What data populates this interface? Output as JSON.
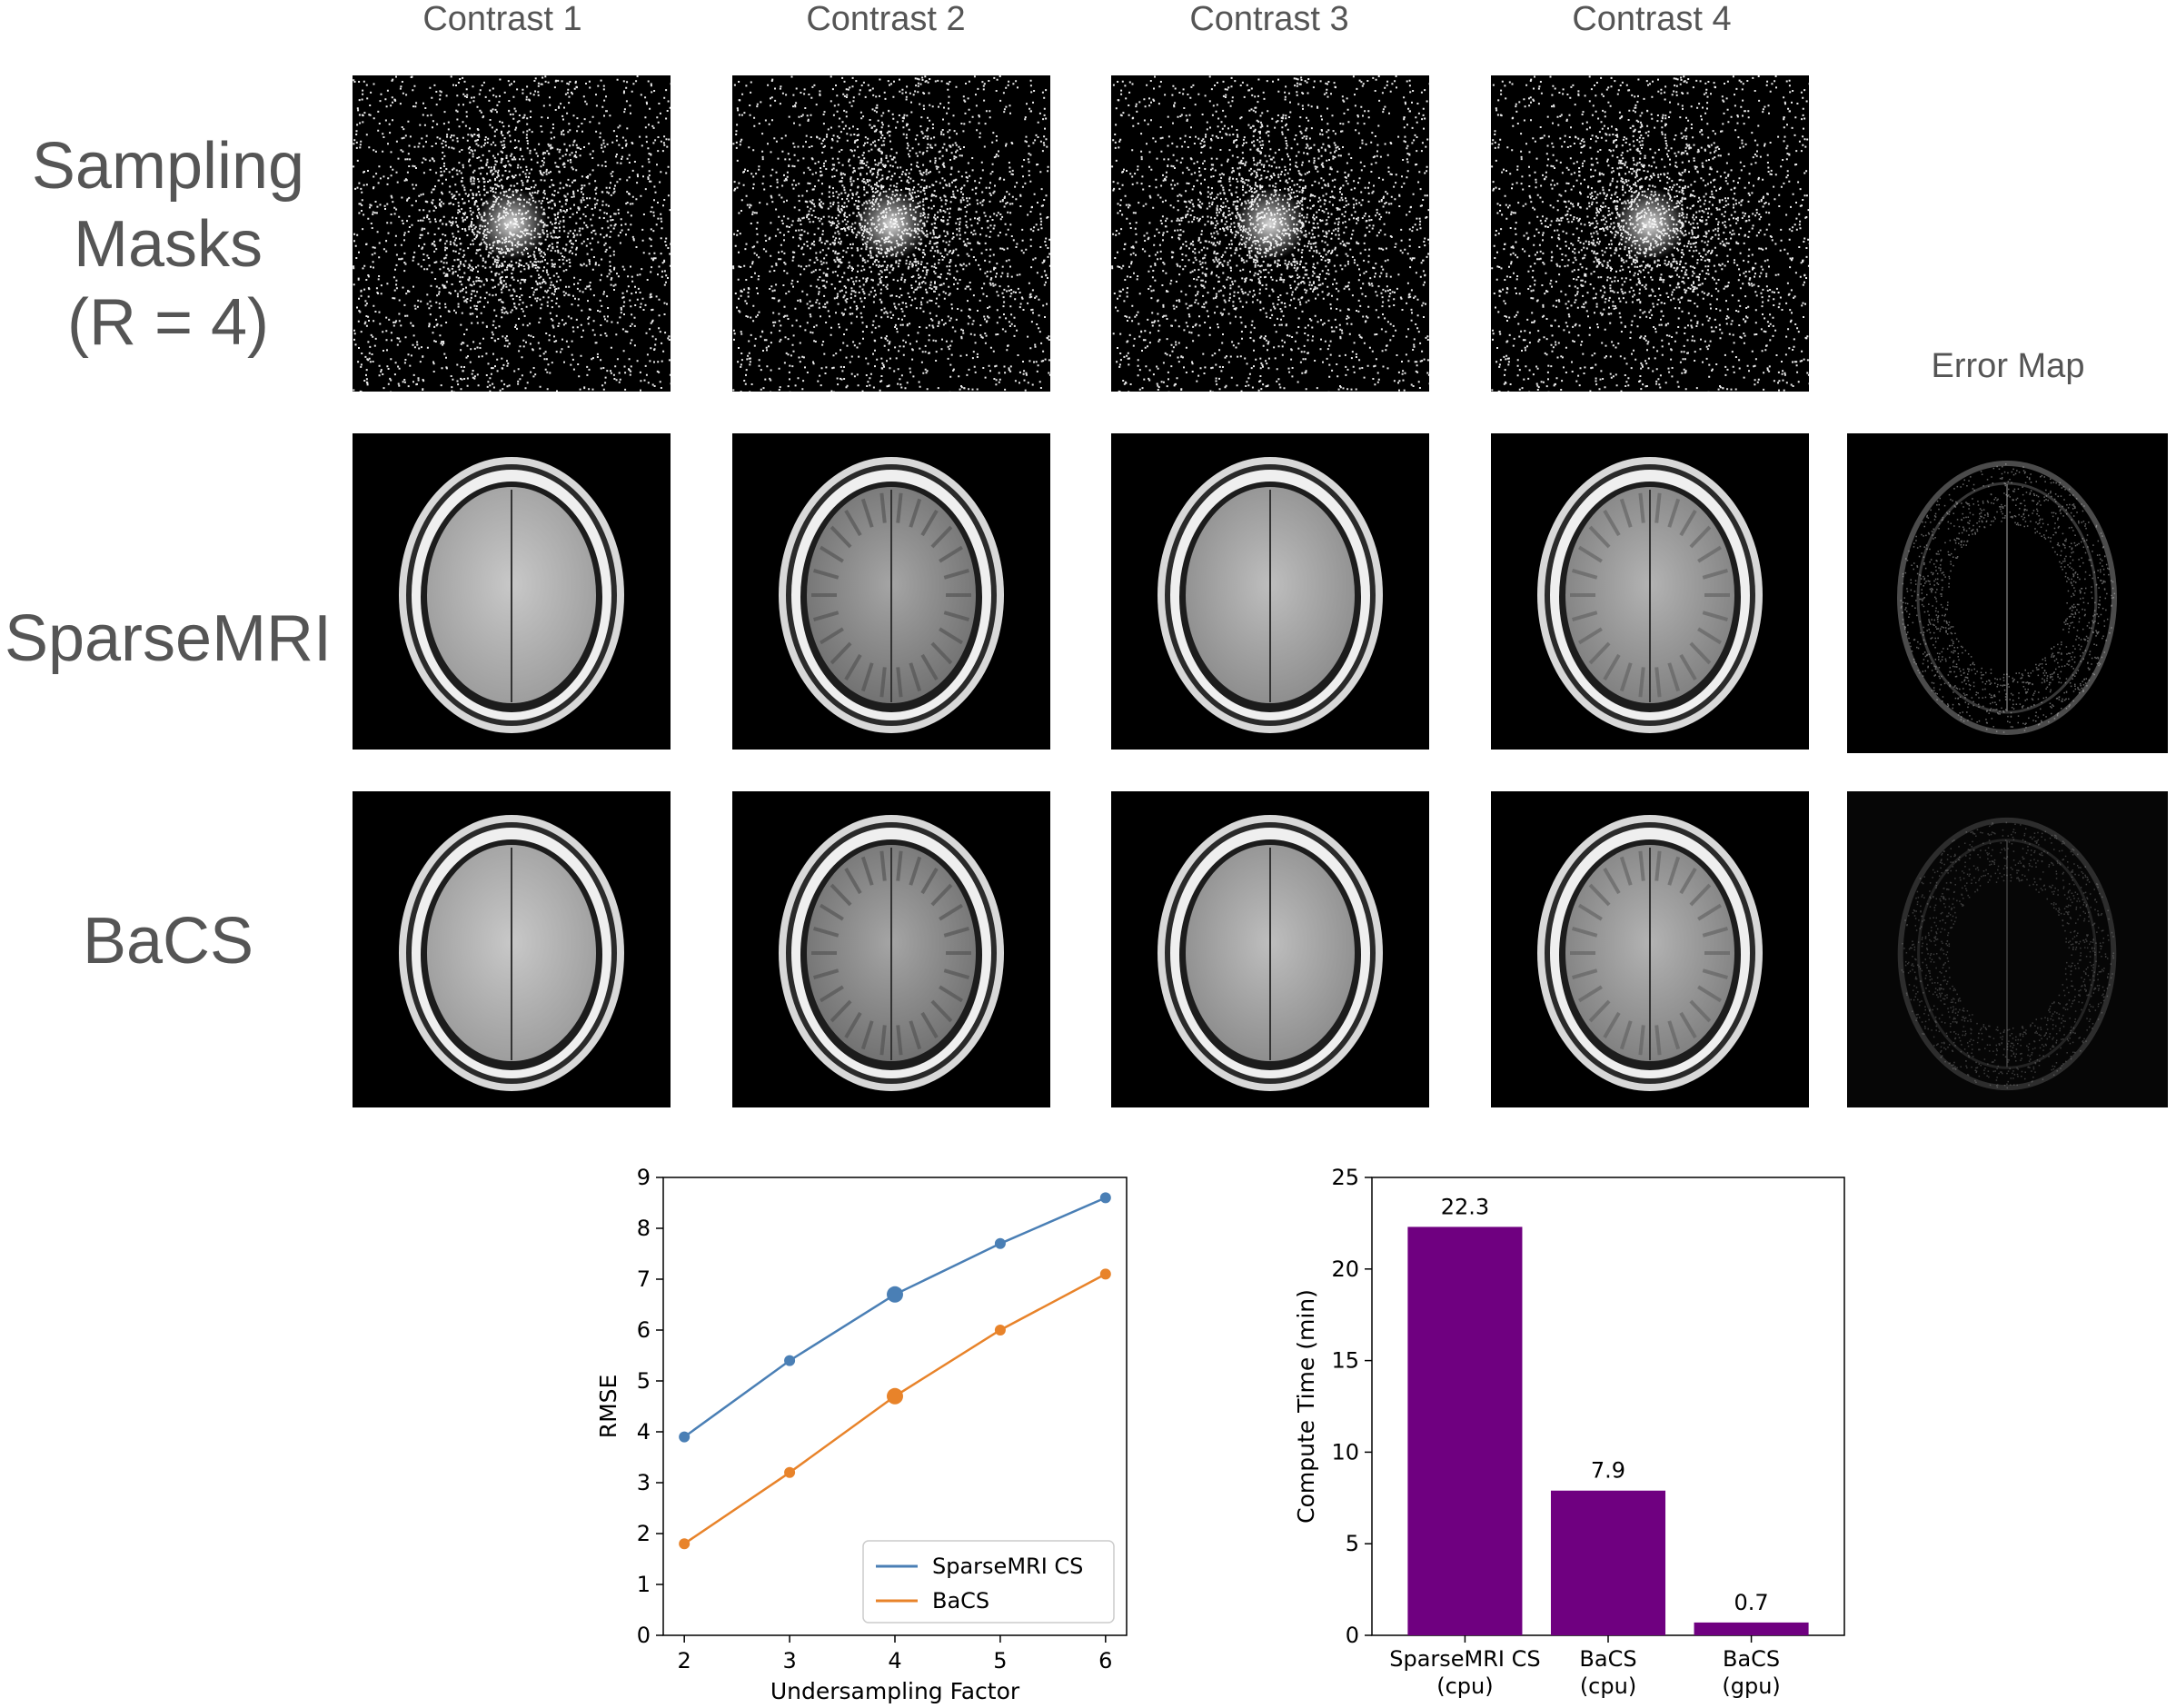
{
  "columns": [
    "Contrast 1",
    "Contrast 2",
    "Contrast 3",
    "Contrast 4"
  ],
  "error_map_label": "Error Map",
  "rows": {
    "sampling": [
      "Sampling",
      "Masks",
      "(R = 4)"
    ],
    "sparsemri": "SparseMRI",
    "bacs": "BaCS"
  },
  "chart_data": [
    {
      "type": "line",
      "xlabel": "Undersampling Factor",
      "ylabel": "RMSE",
      "x": [
        2,
        3,
        4,
        5,
        6
      ],
      "xlim": [
        1.8,
        6.2
      ],
      "ylim": [
        0,
        9
      ],
      "xticks": [
        "2",
        "3",
        "4",
        "5",
        "6"
      ],
      "yticks": [
        "0",
        "1",
        "2",
        "3",
        "4",
        "5",
        "6",
        "7",
        "8",
        "9"
      ],
      "highlight_x": 4,
      "legend_position": "lower-right",
      "series": [
        {
          "name": "SparseMRI CS",
          "color": "#4a7fb5",
          "values": [
            3.9,
            5.4,
            6.7,
            7.7,
            8.6
          ]
        },
        {
          "name": "BaCS",
          "color": "#e8832a",
          "values": [
            1.8,
            3.2,
            4.7,
            6.0,
            7.1
          ]
        }
      ]
    },
    {
      "type": "bar",
      "ylabel": "Compute Time (min)",
      "categories": [
        [
          "SparseMRI CS",
          "(cpu)"
        ],
        [
          "BaCS",
          "(cpu)"
        ],
        [
          "BaCS",
          "(gpu)"
        ]
      ],
      "values": [
        22.3,
        7.9,
        0.7
      ],
      "value_labels": [
        "22.3",
        "7.9",
        "0.7"
      ],
      "ylim": [
        0,
        25
      ],
      "yticks": [
        "0",
        "5",
        "10",
        "15",
        "20",
        "25"
      ],
      "color": "#6f0080"
    }
  ]
}
